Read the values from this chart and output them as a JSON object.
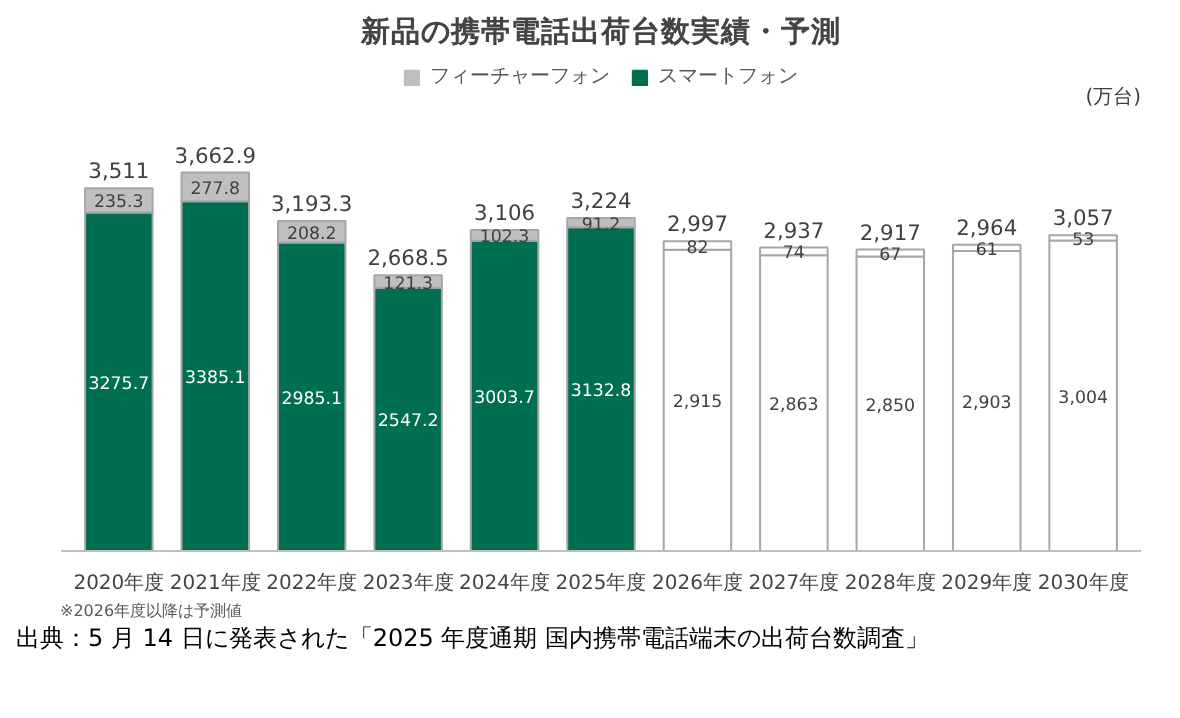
{
  "chart_data": {
    "type": "bar",
    "stacked": true,
    "title": "新品の携帯電話出荷台数実績・予測",
    "categories": [
      "2020年度",
      "2021年度",
      "2022年度",
      "2023年度",
      "2024年度",
      "2025年度",
      "2026年度",
      "2027年度",
      "2028年度",
      "2029年度",
      "2030年度"
    ],
    "series": [
      {
        "name": "スマートフォン",
        "color": "#006e51",
        "colors": [
          "#006e51",
          "#006e51",
          "#006e51",
          "#006e51",
          "#006e51",
          "#006e51",
          "#ffffff",
          "#ffffff",
          "#ffffff",
          "#ffffff",
          "#ffffff"
        ],
        "values": [
          3275.7,
          3385.1,
          2985.1,
          2547.2,
          3003.7,
          3132.8,
          2915,
          2863,
          2850,
          2903,
          3004
        ],
        "value_labels": [
          "3275.7",
          "3385.1",
          "2985.1",
          "2547.2",
          "3003.7",
          "3132.8",
          "2,915",
          "2,863",
          "2,850",
          "2,903",
          "3,004"
        ]
      },
      {
        "name": "フィーチャーフォン",
        "color": "#bfbfbf",
        "colors": [
          "#bfbfbf",
          "#bfbfbf",
          "#bfbfbf",
          "#bfbfbf",
          "#bfbfbf",
          "#bfbfbf",
          "#ffffff",
          "#ffffff",
          "#ffffff",
          "#ffffff",
          "#ffffff"
        ],
        "values": [
          235.3,
          277.8,
          208.2,
          121.3,
          102.3,
          91.2,
          82,
          74,
          67,
          61,
          53
        ],
        "value_labels": [
          "235.3",
          "277.8",
          "208.2",
          "121.3",
          "102.3",
          "91.2",
          "82",
          "74",
          "67",
          "61",
          "53"
        ]
      }
    ],
    "totals": [
      "3,511",
      "3,662.9",
      "3,193.3",
      "2,668.5",
      "3,106",
      "3,224",
      "2,997",
      "2,937",
      "2,917",
      "2,964",
      "3,057"
    ],
    "legend": "top",
    "grid": false,
    "annotations": [
      "(万台)",
      "※2026年度以降は予測値",
      "出典：5 月 14 日に発表された「2025 年度通期 国内携帯電話端末の出荷台数調査」"
    ]
  }
}
